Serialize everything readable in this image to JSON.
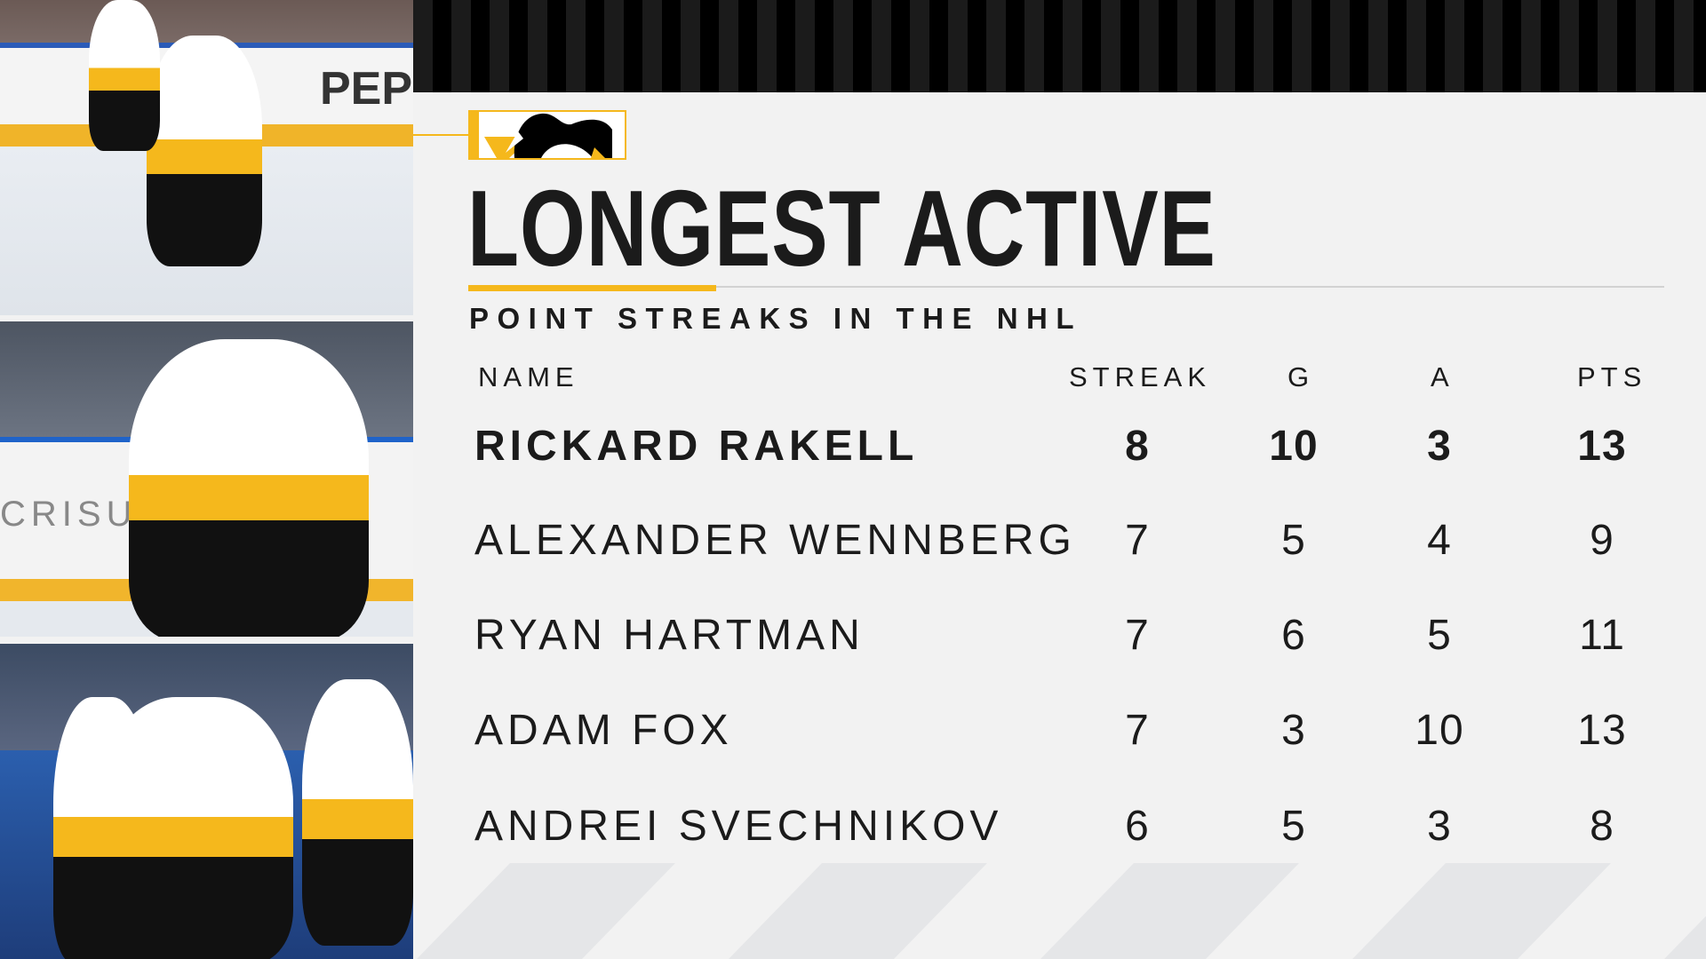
{
  "colors": {
    "accent": "#f5b81c",
    "text": "#1b1b1b",
    "background": "#f2f2f2"
  },
  "logo": {
    "name": "penguin-logo"
  },
  "title": "LONGEST ACTIVE",
  "subtitle": "POINT STREAKS IN THE NHL",
  "photos": [
    {
      "ad_text": "PEPSI"
    },
    {
      "ad_text": "CRISURE"
    },
    {
      "ad_text": ""
    }
  ],
  "table": {
    "headers": {
      "name": "NAME",
      "streak": "STREAK",
      "g": "G",
      "a": "A",
      "pts": "PTS"
    },
    "rows": [
      {
        "name": "RICKARD RAKELL",
        "streak": "8",
        "g": "10",
        "a": "3",
        "pts": "13",
        "highlight": true
      },
      {
        "name": "ALEXANDER WENNBERG",
        "streak": "7",
        "g": "5",
        "a": "4",
        "pts": "9"
      },
      {
        "name": "RYAN HARTMAN",
        "streak": "7",
        "g": "6",
        "a": "5",
        "pts": "11"
      },
      {
        "name": "ADAM FOX",
        "streak": "7",
        "g": "3",
        "a": "10",
        "pts": "13"
      },
      {
        "name": "ANDREI SVECHNIKOV",
        "streak": "6",
        "g": "5",
        "a": "3",
        "pts": "8"
      }
    ]
  }
}
